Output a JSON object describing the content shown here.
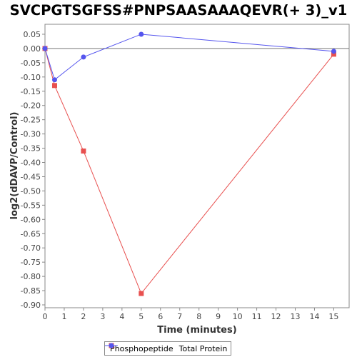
{
  "chart_data": {
    "type": "line",
    "title": "SVCPGTSGFSS#PNPSAASAAAQEVR(+ 3)_v1",
    "xlabel": "Time (minutes)",
    "ylabel": "log2(dDAVP/Control)",
    "xlim": [
      0,
      15.8
    ],
    "ylim": [
      -0.91,
      0.085
    ],
    "xticks": [
      0,
      1,
      2,
      3,
      4,
      5,
      6,
      7,
      8,
      9,
      10,
      11,
      12,
      13,
      14,
      15
    ],
    "yticks": [
      0.05,
      0.0,
      -0.05,
      -0.1,
      -0.15,
      -0.2,
      -0.25,
      -0.3,
      -0.35,
      -0.4,
      -0.45,
      -0.5,
      -0.55,
      -0.6,
      -0.65,
      -0.7,
      -0.75,
      -0.8,
      -0.85,
      -0.9
    ],
    "ytick_labels": [
      "0.05",
      "0.00",
      "-0.05",
      "-0.10",
      "-0.15",
      "-0.20",
      "-0.25",
      "-0.30",
      "-0.35",
      "-0.40",
      "-0.45",
      "-0.50",
      "-0.55",
      "-0.60",
      "-0.65",
      "-0.70",
      "-0.75",
      "-0.80",
      "-0.85",
      "-0.90"
    ],
    "zero_line": true,
    "grid": false,
    "legend_position": "bottom",
    "series": [
      {
        "name": "Phosphopeptide",
        "color": "#e8504f",
        "marker": "square",
        "x": [
          0,
          0.5,
          2,
          5,
          15
        ],
        "y": [
          0.0,
          -0.13,
          -0.36,
          -0.86,
          -0.02
        ]
      },
      {
        "name": "Total Protein",
        "color": "#5555ee",
        "marker": "circle",
        "x": [
          0,
          0.5,
          2,
          5,
          15
        ],
        "y": [
          0.0,
          -0.11,
          -0.03,
          0.05,
          -0.01
        ]
      }
    ]
  }
}
